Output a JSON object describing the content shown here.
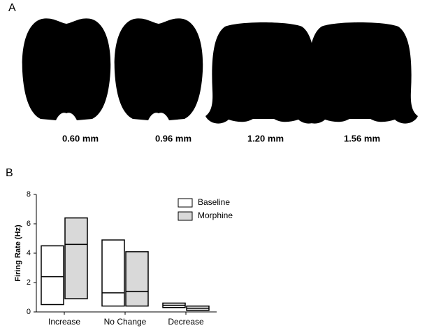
{
  "panel_labels": [
    "A",
    "B"
  ],
  "sections": [
    "0.60 mm",
    "0.96 mm",
    "1.20 mm",
    "1.56 mm"
  ],
  "chart_data": {
    "type": "floating_bar",
    "ylabel": "Firing Rate (Hz)",
    "categories": [
      "Increase",
      "No Change",
      "Decrease"
    ],
    "series": [
      {
        "name": "Baseline",
        "color": "#ffffff",
        "low": [
          0.5,
          0.4,
          0.3
        ],
        "high": [
          4.5,
          4.9,
          0.6
        ],
        "median": [
          2.4,
          1.3,
          0.45
        ]
      },
      {
        "name": "Morphine",
        "color": "#d9d9d9",
        "low": [
          0.9,
          0.4,
          0.1
        ],
        "high": [
          6.4,
          4.1,
          0.4
        ],
        "median": [
          4.6,
          1.4,
          0.25
        ]
      }
    ],
    "ylim": [
      0,
      8
    ],
    "yticks": [
      0,
      2,
      4,
      6,
      8
    ],
    "legend": "upper right"
  }
}
